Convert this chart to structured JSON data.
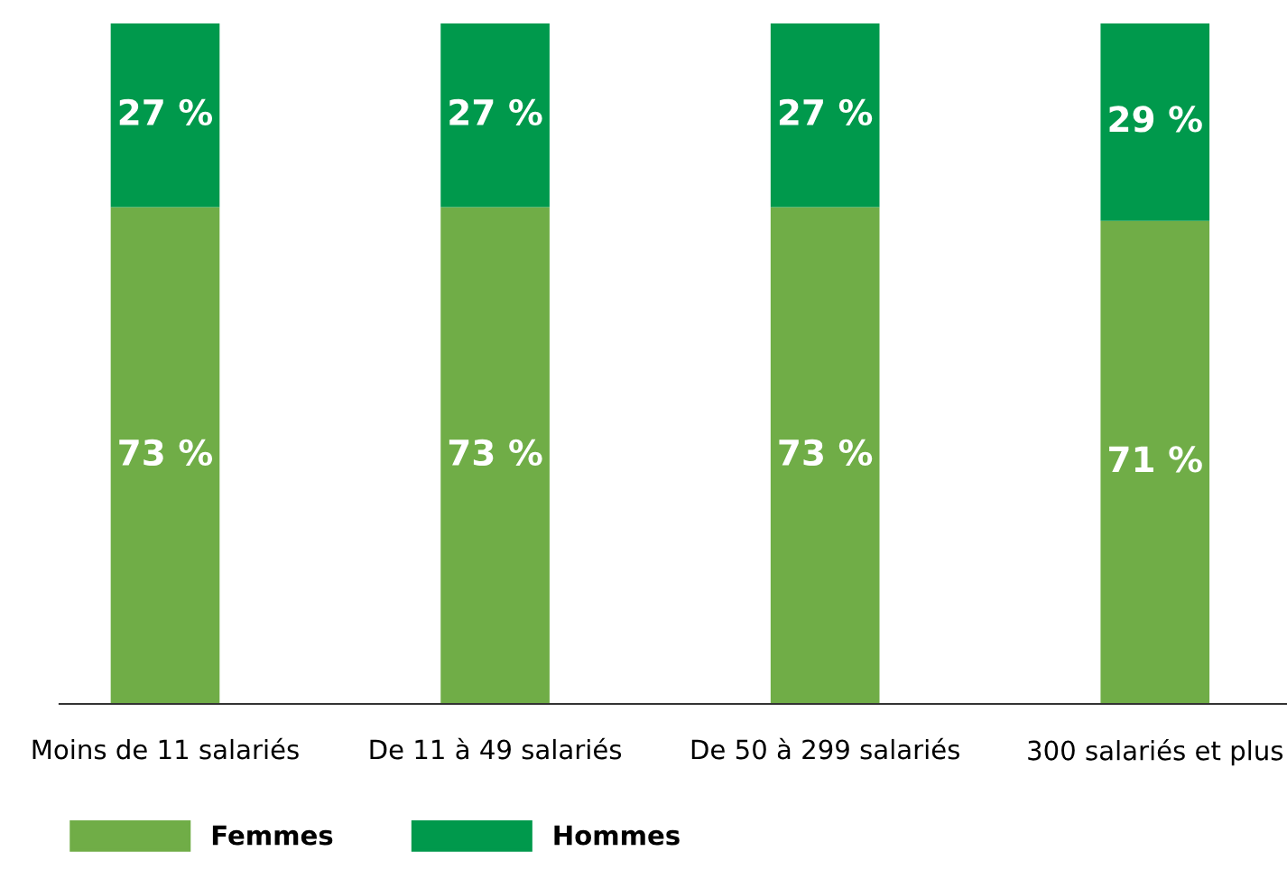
{
  "chart_data": {
    "type": "bar",
    "stacked": true,
    "categories": [
      "Moins de 11 salariés",
      "De 11 à 49 salariés",
      "De 50 à 299 salariés",
      "300 salariés et plus"
    ],
    "series": [
      {
        "name": "Femmes",
        "color": "#70ad47",
        "values": [
          73,
          73,
          73,
          71
        ],
        "value_labels": [
          "73 %",
          "73 %",
          "73 %",
          "71 %"
        ]
      },
      {
        "name": "Hommes",
        "color": "#00994c",
        "values": [
          27,
          27,
          27,
          29
        ],
        "value_labels": [
          "27 %",
          "27 %",
          "27 %",
          "29 %"
        ]
      }
    ],
    "ylim": [
      0,
      100
    ],
    "tick_labels": "x",
    "grid": false,
    "legend": "bottom left"
  }
}
